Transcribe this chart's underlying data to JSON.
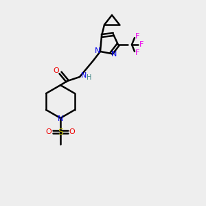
{
  "bg_color": "#eeeeee",
  "atom_colors": {
    "C": "#000000",
    "N": "#0000ee",
    "O": "#ee0000",
    "F": "#ee00ee",
    "S": "#bbbb00",
    "H": "#448888"
  },
  "bond_color": "#000000",
  "bond_width": 1.8,
  "figsize": [
    3.0,
    3.0
  ],
  "dpi": 100
}
